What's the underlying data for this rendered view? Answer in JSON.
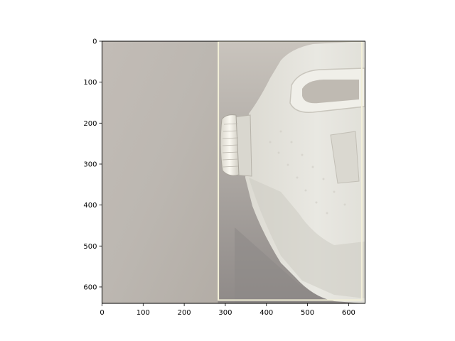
{
  "chart_data": {
    "type": "image",
    "image_width": 640,
    "image_height": 640,
    "xlim": [
      0,
      640
    ],
    "ylim": [
      640,
      0
    ],
    "y_inverted": true,
    "x_ticks": [
      0,
      100,
      200,
      300,
      400,
      500,
      600
    ],
    "y_ticks": [
      0,
      100,
      200,
      300,
      400,
      500,
      600
    ],
    "annotations": [
      {
        "kind": "rectangle",
        "x0": 283,
        "y0": 0,
        "x1": 632,
        "y1": 632,
        "color": "#f3f0d8"
      }
    ],
    "grid": false,
    "colors": {
      "background_wall": "#bdb7b1",
      "jug_plastic": "#e4e3dc",
      "jug_shadow": "#aaa59c",
      "cap": "#f4f2ea",
      "frame": "#000000"
    }
  }
}
